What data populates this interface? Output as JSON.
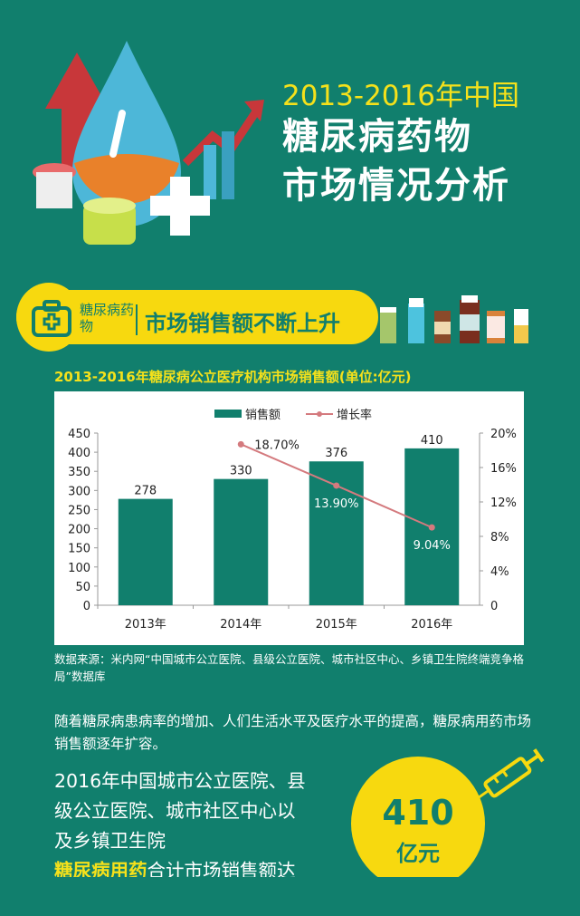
{
  "header": {
    "title_line1": "2013-2016年中国",
    "title_line2": "糖尿病药物",
    "title_line3": "市场情况分析"
  },
  "banner": {
    "category": "糖尿病药物",
    "headline": "市场销售额不断上升",
    "icon": "medical-kit-icon"
  },
  "colors": {
    "background": "#117f6d",
    "accent": "#f7d90f",
    "bar": "#117f6d",
    "line": "#d47a7e"
  },
  "chart_data": {
    "type": "bar+line",
    "title": "2013-2016年糖尿病公立医疗机构市场销售额(单位:亿元)",
    "categories": [
      "2013年",
      "2014年",
      "2015年",
      "2016年"
    ],
    "series": [
      {
        "name": "销售额",
        "type": "bar",
        "axis": "left",
        "values": [
          278,
          330,
          376,
          410
        ],
        "labels": [
          "278",
          "330",
          "376",
          "410"
        ]
      },
      {
        "name": "增长率",
        "type": "line",
        "axis": "right",
        "values": [
          null,
          18.7,
          13.9,
          9.04
        ],
        "labels": [
          "",
          "18.70%",
          "13.90%",
          "9.04%"
        ]
      }
    ],
    "y_left": {
      "range": [
        0,
        450
      ],
      "ticks": [
        "0",
        "50",
        "100",
        "150",
        "200",
        "250",
        "300",
        "350",
        "400",
        "450"
      ]
    },
    "y_right": {
      "range": [
        0,
        20
      ],
      "ticks": [
        "0",
        "4%",
        "8%",
        "12%",
        "16%",
        "20%"
      ]
    },
    "legend": "top",
    "grid": false
  },
  "source": "数据来源：米内网“中国城市公立医院、县级公立医院、城市社区中心、乡镇卫生院终端竞争格局”数据库",
  "paragraph": "随着糖尿病患病率的增加、人们生活水平及医疗水平的提高，糖尿病用药市场销售额逐年扩容。",
  "highlight": {
    "lines": [
      "2016年中国城市公立医院、县",
      "级公立医院、城市社区中心以",
      "及乡镇卫生院"
    ],
    "emph": "糖尿病用药",
    "tail": "合计市场销售额达",
    "number": "410",
    "unit": "亿元"
  }
}
